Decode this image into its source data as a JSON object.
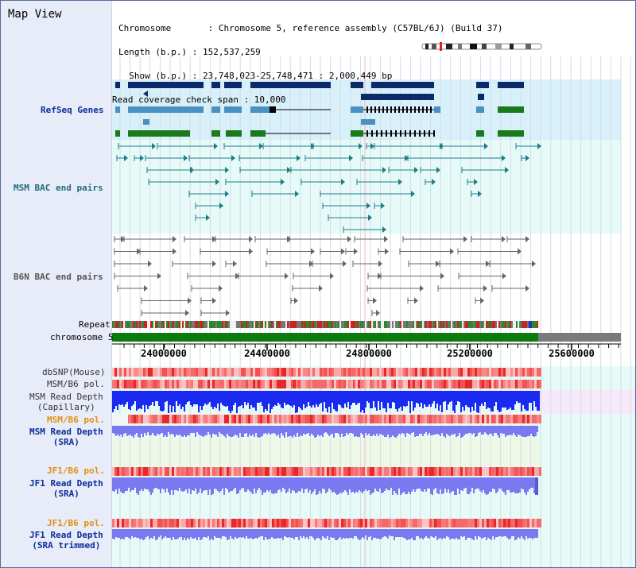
{
  "title": "Map View",
  "info": {
    "chromosome_line": "Chromosome       : Chromosome 5, reference assembly (C57BL/6J) (Build 37)",
    "length_line": "Length (b.p.) : 152,537,259",
    "show_line": "  Show (b.p.) : 23,748,023-25,748,471 : 2,000,449 bp",
    "span_line": "Read coverage check span : 10,000"
  },
  "tracks": {
    "refseq": "RefSeq Genes",
    "msm_bac": "MSM BAC end pairs",
    "b6n_bac": "B6N BAC end pairs",
    "repeat": "Repeat",
    "chromosome": "chromosome 5",
    "dbsnp": "dbSNP(Mouse)",
    "msm_b6_pol_1": "MSM/B6 pol.",
    "msm_read_depth_cap": "MSM Read Depth\n(Capillary)",
    "msm_b6_pol_2": "MSM/B6 pol.",
    "msm_read_depth_sra": "MSM Read Depth\n(SRA)",
    "jf1_b6_pol_1": "JF1/B6 pol.",
    "jf1_read_depth_sra": "JF1 Read Depth\n(SRA)",
    "jf1_b6_pol_2": "JF1/B6 pol.",
    "jf1_read_depth_trimmed": "JF1 Read Depth\n(SRA trimmed)"
  },
  "axis_ticks": [
    "24000000",
    "24400000",
    "24800000",
    "25200000",
    "25600000"
  ],
  "colors": {
    "refseq_bg": "#d8f0fa",
    "bac_bg": "#e6fbf8",
    "gene_dark": "#0a2a6a",
    "gene_mid": "#4a90c0",
    "gene_green": "#1a7a1a",
    "chromosome_bar": "#0c7a0c",
    "snp_red": "#f03030",
    "depth_blue": "#1a2af0",
    "depth_light": "#7a7af0"
  }
}
